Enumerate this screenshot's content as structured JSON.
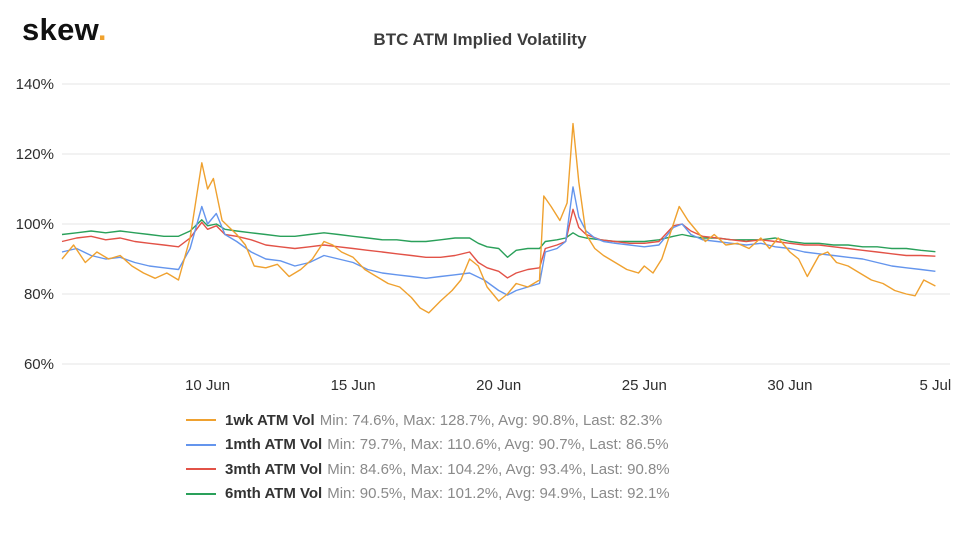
{
  "brand": {
    "name": "skew",
    "dot": ".",
    "accent_color": "#f0a22e"
  },
  "title": "BTC ATM Implied Volatility",
  "chart_data": {
    "type": "line",
    "title": "BTC ATM Implied Volatility",
    "ylim": [
      60,
      140
    ],
    "yticks": [
      60,
      80,
      100,
      120,
      140
    ],
    "ytick_suffix": "%",
    "x_domain": [
      0,
      30.5
    ],
    "x_unit": "days-since-5-jun",
    "xticks": [
      {
        "label": "10 Jun",
        "x": 5
      },
      {
        "label": "15 Jun",
        "x": 10
      },
      {
        "label": "20 Jun",
        "x": 15
      },
      {
        "label": "25 Jun",
        "x": 20
      },
      {
        "label": "30 Jun",
        "x": 25
      },
      {
        "label": "5 Jul",
        "x": 30
      }
    ],
    "grid": "horizontal",
    "legend_position": "bottom",
    "series": [
      {
        "name": "1wk ATM Vol",
        "color": "#efa12f",
        "min": 74.6,
        "max": 128.7,
        "avg": 90.8,
        "last": 82.3,
        "x": [
          0,
          0.4,
          0.8,
          1.2,
          1.6,
          2,
          2.4,
          2.8,
          3.2,
          3.6,
          4,
          4.4,
          4.8,
          5,
          5.2,
          5.5,
          6,
          6.3,
          6.6,
          7,
          7.4,
          7.8,
          8.2,
          8.6,
          9,
          9.3,
          9.6,
          10,
          10.4,
          10.8,
          11.2,
          11.6,
          12,
          12.3,
          12.6,
          13,
          13.4,
          13.7,
          14,
          14.3,
          14.6,
          15,
          15.3,
          15.6,
          16,
          16.4,
          16.55,
          16.8,
          17.1,
          17.35,
          17.55,
          17.75,
          18,
          18.3,
          18.6,
          19,
          19.4,
          19.8,
          20,
          20.3,
          20.6,
          21,
          21.2,
          21.5,
          21.8,
          22.1,
          22.4,
          22.8,
          23.2,
          23.6,
          24,
          24.3,
          24.6,
          25,
          25.3,
          25.6,
          26,
          26.3,
          26.6,
          27,
          27.4,
          27.8,
          28.2,
          28.6,
          29,
          29.3,
          29.6,
          30
        ],
        "values": [
          90,
          94,
          89,
          92,
          90,
          91,
          88,
          86,
          84.5,
          86,
          84,
          96,
          117.5,
          110,
          113,
          101,
          97,
          94,
          88,
          87.5,
          88.5,
          85,
          87,
          90,
          95,
          94,
          92,
          90.5,
          87,
          85,
          83,
          82,
          79,
          76,
          74.6,
          78,
          81,
          84,
          90,
          88,
          82,
          78,
          80,
          83,
          82,
          84,
          108,
          105,
          101,
          106,
          128.7,
          112,
          97,
          93,
          91,
          89,
          87,
          86,
          88,
          86,
          90,
          100,
          105,
          101,
          98,
          95,
          97,
          94,
          94.5,
          93,
          96,
          93,
          96,
          92,
          90,
          85,
          91,
          92,
          89,
          88,
          86,
          84,
          83,
          81,
          80,
          79.5,
          84,
          82.3
        ]
      },
      {
        "name": "1mth ATM Vol",
        "color": "#6495ed",
        "min": 79.7,
        "max": 110.6,
        "avg": 90.7,
        "last": 86.5,
        "x": [
          0,
          0.5,
          1,
          1.5,
          2,
          2.5,
          3,
          3.5,
          4,
          4.4,
          4.8,
          5,
          5.3,
          5.6,
          6,
          6.5,
          7,
          7.5,
          8,
          8.5,
          9,
          9.5,
          10,
          10.5,
          11,
          11.5,
          12,
          12.5,
          13,
          13.5,
          14,
          14.5,
          15,
          15.3,
          15.6,
          16,
          16.4,
          16.6,
          17,
          17.3,
          17.55,
          17.75,
          18,
          18.3,
          18.6,
          19,
          19.5,
          20,
          20.5,
          21,
          21.3,
          21.6,
          22,
          22.5,
          23,
          23.5,
          24,
          24.5,
          25,
          25.5,
          26,
          26.5,
          27,
          27.5,
          28,
          28.5,
          29,
          29.5,
          30
        ],
        "values": [
          92,
          93,
          91,
          90,
          90.5,
          89,
          88,
          87.5,
          87,
          93,
          105,
          100,
          103,
          97,
          95,
          92,
          90,
          89.5,
          88,
          89,
          91,
          90,
          89,
          87,
          86,
          85.5,
          85,
          84.5,
          85,
          85.5,
          86,
          84,
          81,
          79.7,
          81,
          82,
          83,
          92,
          93,
          95,
          110.6,
          102,
          98,
          96,
          95,
          94.5,
          94,
          93.5,
          94,
          99,
          100,
          97,
          95.5,
          95,
          94.5,
          94,
          94.5,
          93.5,
          93,
          92,
          91.5,
          91,
          90.5,
          90,
          89,
          88,
          87.5,
          87,
          86.5
        ]
      },
      {
        "name": "3mth ATM Vol",
        "color": "#e25247",
        "min": 84.6,
        "max": 104.2,
        "avg": 93.4,
        "last": 90.8,
        "x": [
          0,
          0.5,
          1,
          1.5,
          2,
          2.5,
          3,
          3.5,
          4,
          4.4,
          4.8,
          5,
          5.3,
          5.6,
          6,
          6.5,
          7,
          7.5,
          8,
          8.5,
          9,
          9.5,
          10,
          10.5,
          11,
          11.5,
          12,
          12.5,
          13,
          13.5,
          14,
          14.3,
          14.6,
          15,
          15.3,
          15.6,
          16,
          16.4,
          16.6,
          17,
          17.3,
          17.55,
          17.75,
          18,
          18.5,
          19,
          19.5,
          20,
          20.5,
          21,
          21.3,
          21.6,
          22,
          22.5,
          23,
          23.5,
          24,
          24.5,
          25,
          25.5,
          26,
          26.5,
          27,
          27.5,
          28,
          28.5,
          29,
          29.5,
          30
        ],
        "values": [
          95,
          96,
          96.5,
          95.5,
          96,
          95,
          94.5,
          94,
          93.5,
          96,
          100.5,
          98.5,
          99.5,
          97,
          96.5,
          95.5,
          94,
          93.5,
          93,
          93.5,
          94,
          93.5,
          93,
          92.5,
          92,
          91.5,
          91,
          90.5,
          90.5,
          91,
          92,
          89,
          87.5,
          86.5,
          84.6,
          86,
          87,
          87.5,
          93,
          94,
          95,
          104.2,
          99,
          97,
          95.5,
          95,
          94.5,
          94.5,
          95,
          99.5,
          100,
          98,
          96.5,
          96,
          95.5,
          95,
          95.5,
          95,
          94.5,
          94,
          94,
          93.5,
          93,
          92.5,
          92,
          91.5,
          91,
          91,
          90.8
        ]
      },
      {
        "name": "6mth ATM Vol",
        "color": "#2aa05a",
        "min": 90.5,
        "max": 101.2,
        "avg": 94.9,
        "last": 92.1,
        "x": [
          0,
          0.5,
          1,
          1.5,
          2,
          2.5,
          3,
          3.5,
          4,
          4.4,
          4.8,
          5,
          5.3,
          5.6,
          6,
          6.5,
          7,
          7.5,
          8,
          8.5,
          9,
          9.5,
          10,
          10.5,
          11,
          11.5,
          12,
          12.5,
          13,
          13.5,
          14,
          14.3,
          14.6,
          15,
          15.3,
          15.6,
          16,
          16.4,
          16.6,
          17,
          17.3,
          17.55,
          17.75,
          18,
          18.5,
          19,
          19.5,
          20,
          20.5,
          21,
          21.3,
          21.6,
          22,
          22.5,
          23,
          23.5,
          24,
          24.5,
          25,
          25.5,
          26,
          26.5,
          27,
          27.5,
          28,
          28.5,
          29,
          29.5,
          30
        ],
        "values": [
          97,
          97.5,
          98,
          97.5,
          98,
          97.5,
          97,
          96.5,
          96.5,
          98,
          101.2,
          99.5,
          100,
          98.5,
          98,
          97.5,
          97,
          96.5,
          96.5,
          97,
          97.5,
          97,
          96.5,
          96,
          95.5,
          95.5,
          95,
          95,
          95.5,
          96,
          96,
          94.5,
          93.5,
          93,
          90.5,
          92.5,
          93,
          93,
          95,
          95.5,
          96,
          97.5,
          96.5,
          96,
          95.5,
          95,
          95,
          95,
          95.5,
          96.5,
          97,
          96.5,
          96,
          96,
          95.5,
          95.5,
          95.5,
          96,
          95,
          94.5,
          94.5,
          94,
          94,
          93.5,
          93.5,
          93,
          93,
          92.5,
          92.1
        ]
      }
    ]
  },
  "legend": {
    "items": [
      {
        "label": "1wk ATM Vol",
        "stats": "Min: 74.6%, Max: 128.7%, Avg: 90.8%, Last: 82.3%",
        "color": "#efa12f"
      },
      {
        "label": "1mth ATM Vol",
        "stats": "Min: 79.7%, Max: 110.6%, Avg: 90.7%, Last: 86.5%",
        "color": "#6495ed"
      },
      {
        "label": "3mth ATM Vol",
        "stats": "Min: 84.6%, Max: 104.2%, Avg: 93.4%, Last: 90.8%",
        "color": "#e25247"
      },
      {
        "label": "6mth ATM Vol",
        "stats": "Min: 90.5%, Max: 101.2%, Avg: 94.9%, Last: 92.1%",
        "color": "#2aa05a"
      }
    ]
  }
}
